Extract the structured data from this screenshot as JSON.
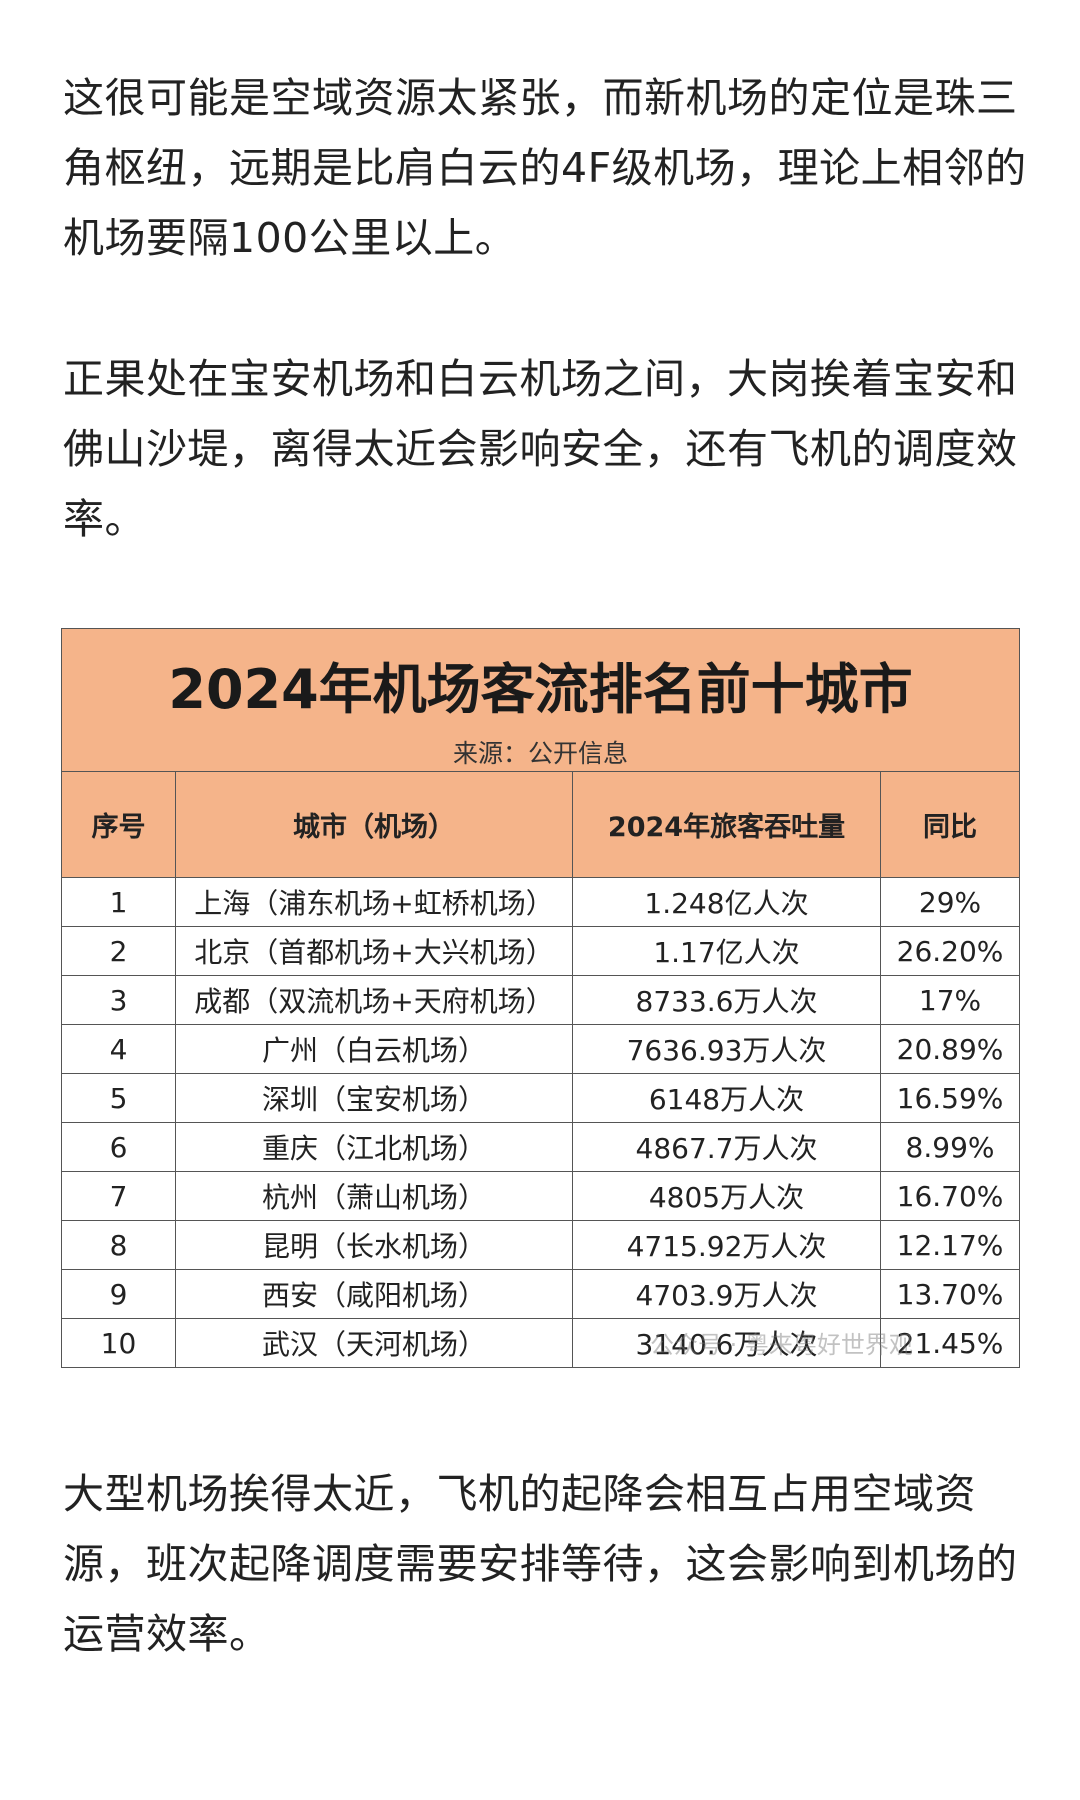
{
  "paragraphs": [
    "这很可能是空域资源太紧张，而新机场的定位是珠三角枢纽，远期是比肩白云的4F级机场，理论上相邻的机场要隔100公里以上。",
    "正果处在宝安机场和白云机场之间，大岗挨着宝安和佛山沙堤，离得太近会影响安全，还有飞机的调度效率。",
    "大型机场挨得太近，飞机的起降会相互占用空域资源，班次起降调度需要安排等待，这会影响到机场的运营效率。"
  ],
  "table": {
    "title": "2024年机场客流排名前十城市",
    "source": "来源：公开信息",
    "headers": [
      "序号",
      "城市（机场）",
      "2024年旅客吞吐量",
      "同比"
    ],
    "rows": [
      [
        "1",
        "上海（浦东机场+虹桥机场）",
        "1.248亿人次",
        "29%"
      ],
      [
        "2",
        "北京（首都机场+大兴机场）",
        "1.17亿人次",
        "26.20%"
      ],
      [
        "3",
        "成都（双流机场+天府机场）",
        "8733.6万人次",
        "17%"
      ],
      [
        "4",
        "广州（白云机场）",
        "7636.93万人次",
        "20.89%"
      ],
      [
        "5",
        "深圳（宝安机场）",
        "6148万人次",
        "16.59%"
      ],
      [
        "6",
        "重庆（江北机场）",
        "4867.7万人次",
        "8.99%"
      ],
      [
        "7",
        "杭州（萧山机场）",
        "4805万人次",
        "16.70%"
      ],
      [
        "8",
        "昆明（长水机场）",
        "4715.92万人次",
        "12.17%"
      ],
      [
        "9",
        "西安（咸阳机场）",
        "4703.9万人次",
        "13.70%"
      ],
      [
        "10",
        "武汉（天河机场）",
        "3140.6万人次",
        "21.45%"
      ]
    ]
  },
  "watermark": "公众号 · 粤来粤好世界观"
}
